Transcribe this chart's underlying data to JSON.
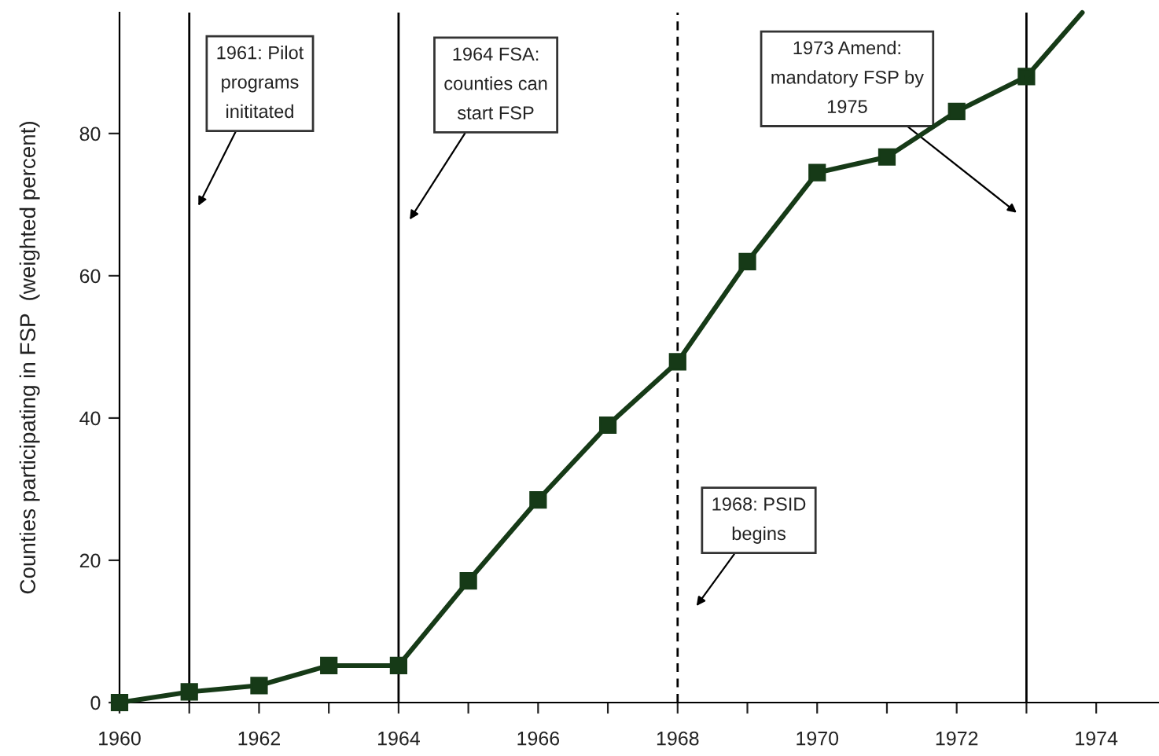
{
  "chart_data": {
    "type": "line",
    "ylabel": "Counties participating in FSP  (weighted percent)",
    "x": [
      1960,
      1961,
      1962,
      1963,
      1964,
      1965,
      1966,
      1967,
      1968,
      1969,
      1970,
      1971,
      1972,
      1973
    ],
    "series": [
      {
        "color": "#163a17",
        "values": [
          0,
          1.5,
          2.4,
          5.2,
          5.2,
          17.1,
          28.5,
          39.0,
          47.9,
          62.0,
          74.5,
          76.7,
          83.1,
          88.0
        ],
        "marker": "square"
      },
      {
        "color": "#163a17",
        "x": [
          1973,
          1973.8
        ],
        "values": [
          88.0,
          97
        ],
        "marker": "none"
      }
    ],
    "xlim": [
      1960,
      1974.9
    ],
    "xticks": [
      1960,
      {
        "value": 1961,
        "label": null
      },
      1962,
      {
        "value": 1963,
        "label": null
      },
      1964,
      {
        "value": 1965,
        "label": null
      },
      1966,
      {
        "value": 1967,
        "label": null
      },
      1968,
      {
        "value": 1969,
        "label": null
      },
      1970,
      {
        "value": 1971,
        "label": null
      },
      1972,
      {
        "value": 1973,
        "label": null
      },
      1974
    ],
    "ylim": [
      0,
      97
    ],
    "yticks": [
      0,
      20,
      40,
      60,
      80
    ],
    "grid": false,
    "legend": false,
    "line_style": "solid",
    "ref_lines": [
      {
        "axis": "x",
        "value": 1961,
        "label": "1961: Pilot\nprograms\ninititated",
        "color": "#000000",
        "line_style": "solid"
      },
      {
        "axis": "x",
        "value": 1964,
        "label": "1964 FSA:\ncounties can\nstart FSP",
        "color": "#000000",
        "line_style": "solid"
      },
      {
        "axis": "x",
        "value": 1968,
        "label": "1968: PSID\nbegins",
        "color": "#000000",
        "line_style": "dashed"
      },
      {
        "axis": "x",
        "value": 1973,
        "label": "1973 Amend:\nmandatory FSP by\n1975",
        "color": "#000000",
        "line_style": "solid"
      }
    ]
  }
}
